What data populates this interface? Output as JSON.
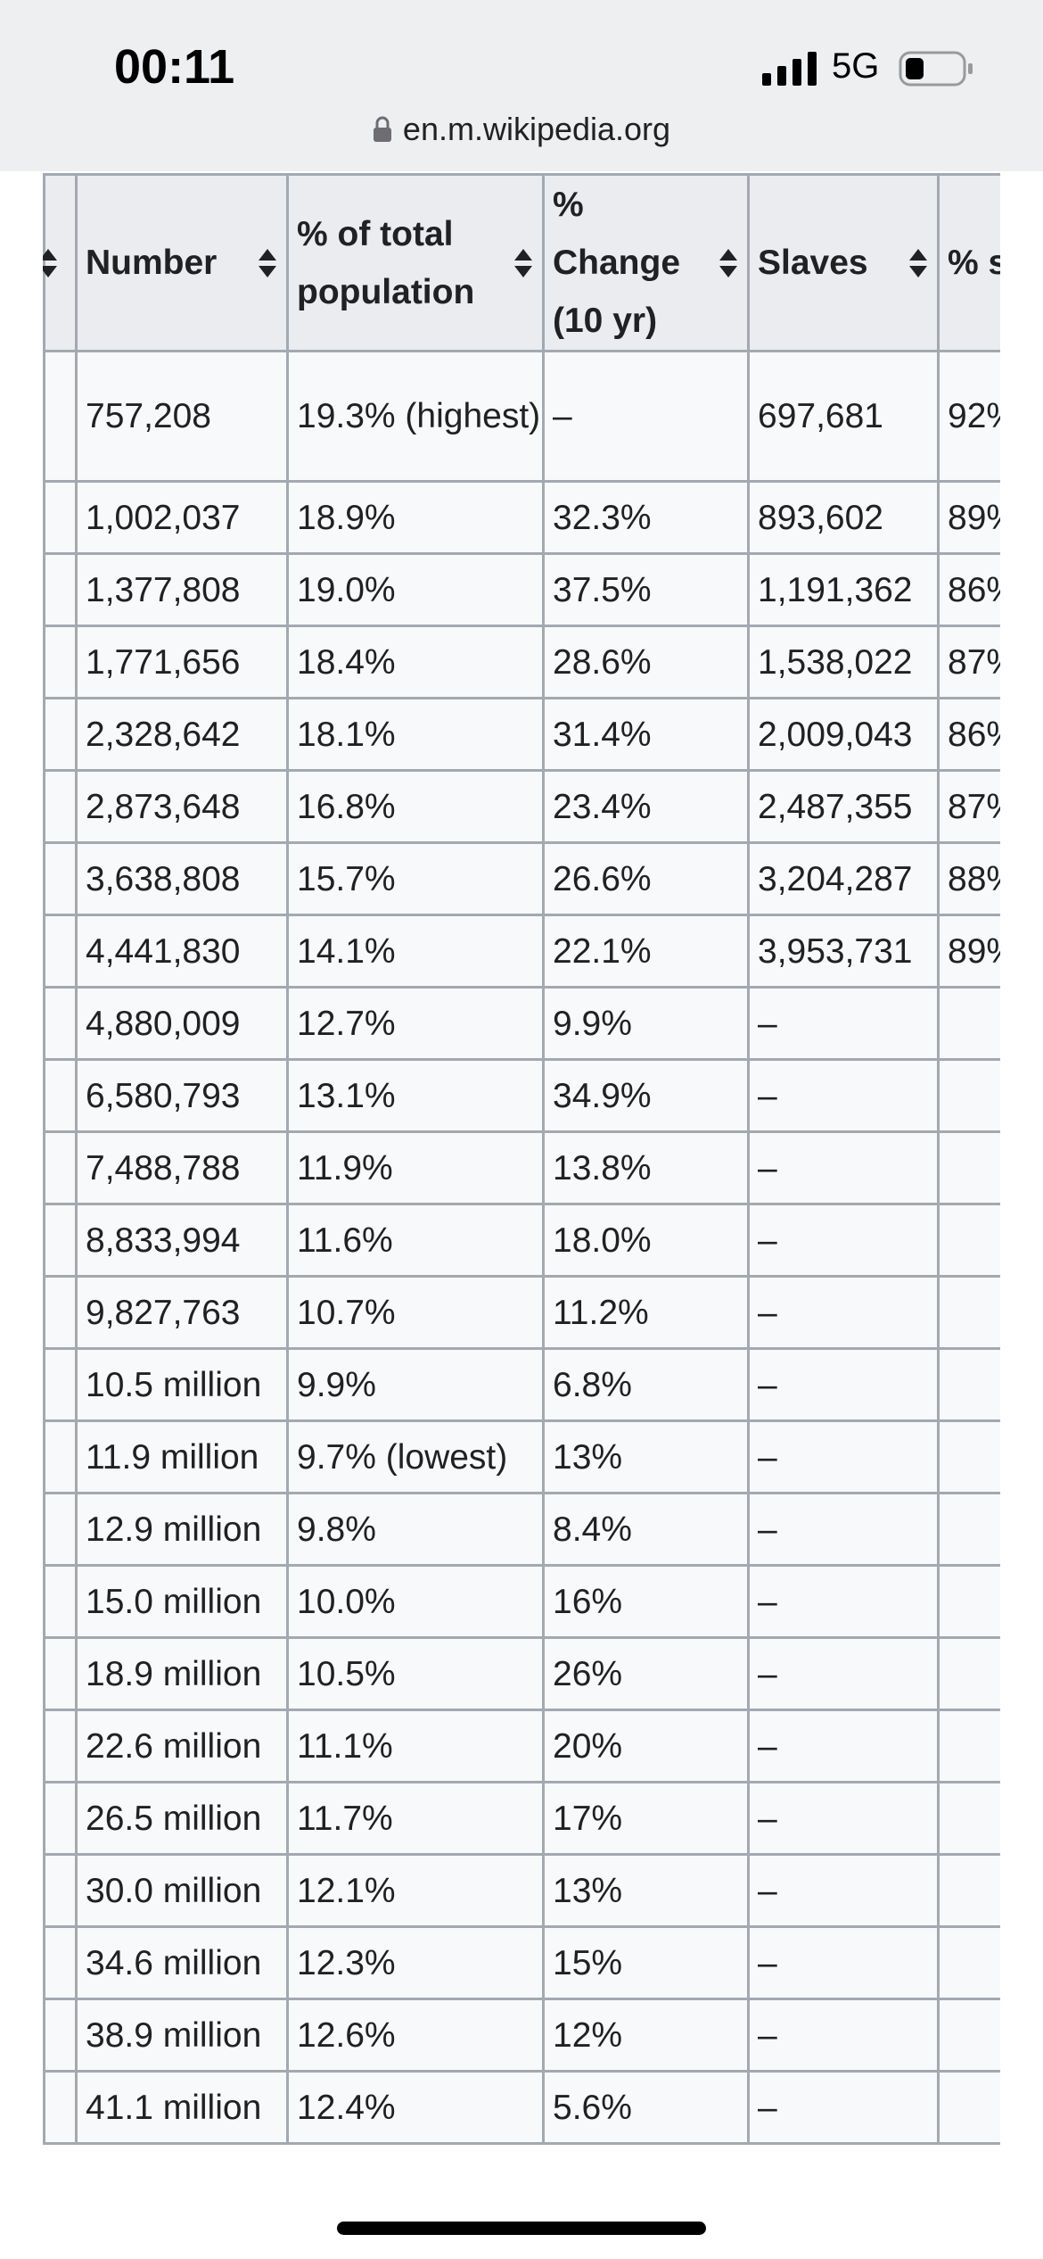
{
  "status_bar": {
    "time": "00:11",
    "network": "5G"
  },
  "address_bar": {
    "url": "en.m.wikipedia.org"
  },
  "table": {
    "headers": [
      "Number",
      "% of total population",
      "% Change (10 yr)",
      "Slaves",
      "% sla"
    ],
    "rows": [
      [
        "757,208",
        "19.3% (highest)",
        "–",
        "697,681",
        "92%"
      ],
      [
        "1,002,037",
        "18.9%",
        "32.3%",
        "893,602",
        "89%"
      ],
      [
        "1,377,808",
        "19.0%",
        "37.5%",
        "1,191,362",
        "86%"
      ],
      [
        "1,771,656",
        "18.4%",
        "28.6%",
        "1,538,022",
        "87%"
      ],
      [
        "2,328,642",
        "18.1%",
        "31.4%",
        "2,009,043",
        "86%"
      ],
      [
        "2,873,648",
        "16.8%",
        "23.4%",
        "2,487,355",
        "87%"
      ],
      [
        "3,638,808",
        "15.7%",
        "26.6%",
        "3,204,287",
        "88%"
      ],
      [
        "4,441,830",
        "14.1%",
        "22.1%",
        "3,953,731",
        "89%"
      ],
      [
        "4,880,009",
        "12.7%",
        "9.9%",
        "–",
        "–"
      ],
      [
        "6,580,793",
        "13.1%",
        "34.9%",
        "–",
        "–"
      ],
      [
        "7,488,788",
        "11.9%",
        "13.8%",
        "–",
        "–"
      ],
      [
        "8,833,994",
        "11.6%",
        "18.0%",
        "–",
        "–"
      ],
      [
        "9,827,763",
        "10.7%",
        "11.2%",
        "–",
        "–"
      ],
      [
        "10.5 million",
        "9.9%",
        "6.8%",
        "–",
        "–"
      ],
      [
        "11.9 million",
        "9.7% (lowest)",
        "13%",
        "–",
        "–"
      ],
      [
        "12.9 million",
        "9.8%",
        "8.4%",
        "–",
        "–"
      ],
      [
        "15.0 million",
        "10.0%",
        "16%",
        "–",
        "–"
      ],
      [
        "18.9 million",
        "10.5%",
        "26%",
        "–",
        "–"
      ],
      [
        "22.6 million",
        "11.1%",
        "20%",
        "–",
        "–"
      ],
      [
        "26.5 million",
        "11.7%",
        "17%",
        "–",
        "–"
      ],
      [
        "30.0 million",
        "12.1%",
        "13%",
        "–",
        "–"
      ],
      [
        "34.6 million",
        "12.3%",
        "15%",
        "–",
        "–"
      ],
      [
        "38.9 million",
        "12.6%",
        "12%",
        "–",
        "–"
      ],
      [
        "41.1 million",
        "12.4%",
        "5.6%",
        "–",
        "–"
      ]
    ]
  }
}
